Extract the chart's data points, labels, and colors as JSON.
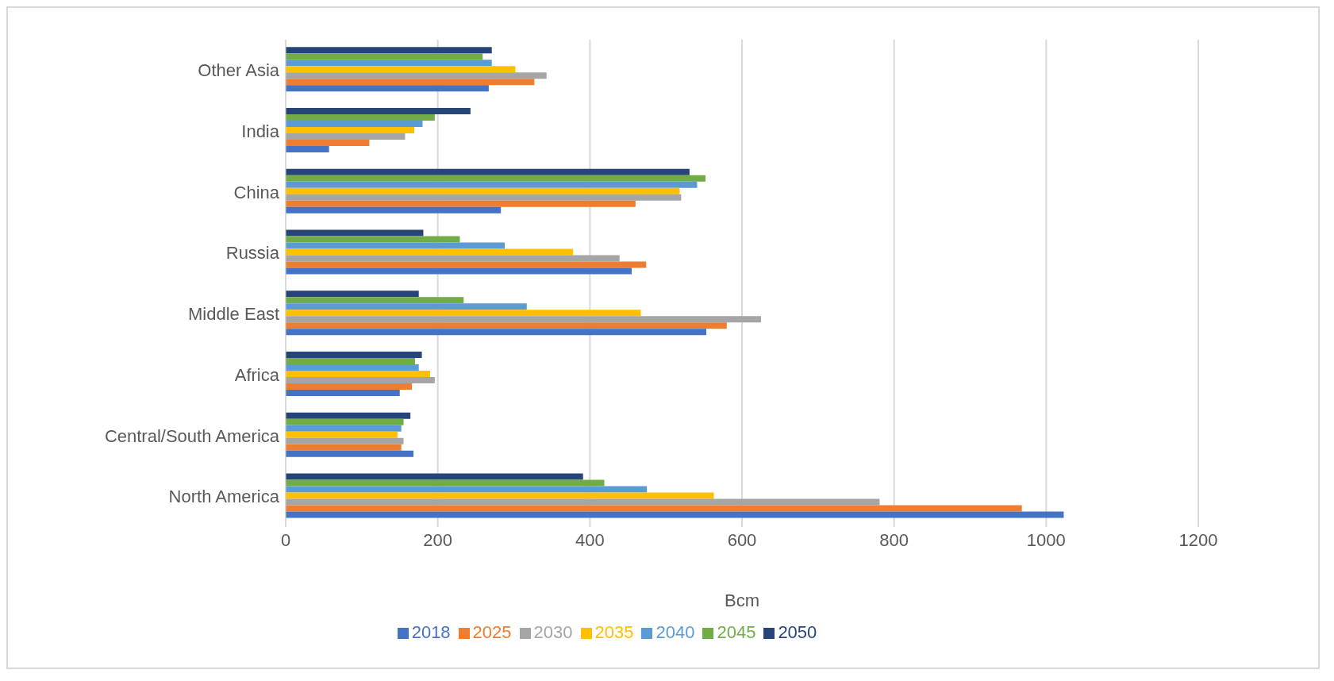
{
  "chart_data": {
    "type": "bar",
    "orientation": "horizontal",
    "xlabel": "Bcm",
    "categories": [
      "Other Asia",
      "India",
      "China",
      "Russia",
      "Middle East",
      "Africa",
      "Central/South America",
      "North America"
    ],
    "series": [
      {
        "name": "2050",
        "color": "#264478",
        "values": [
          271,
          243,
          531,
          181,
          175,
          179,
          164,
          391
        ]
      },
      {
        "name": "2045",
        "color": "#70ad47",
        "values": [
          259,
          196,
          552,
          229,
          234,
          170,
          155,
          419
        ]
      },
      {
        "name": "2040",
        "color": "#5b9bd5",
        "values": [
          271,
          180,
          541,
          288,
          317,
          175,
          152,
          475
        ]
      },
      {
        "name": "2035",
        "color": "#ffc000",
        "values": [
          302,
          169,
          518,
          378,
          467,
          190,
          147,
          563
        ]
      },
      {
        "name": "2030",
        "color": "#a5a5a5",
        "values": [
          343,
          157,
          520,
          439,
          625,
          196,
          155,
          781
        ]
      },
      {
        "name": "2025",
        "color": "#ed7d31",
        "values": [
          327,
          110,
          460,
          474,
          580,
          166,
          152,
          968
        ]
      },
      {
        "name": "2018",
        "color": "#4472c4",
        "values": [
          267,
          57,
          283,
          455,
          553,
          150,
          168,
          1023
        ]
      }
    ],
    "xlim": [
      0,
      1200
    ],
    "xticks": [
      0,
      200,
      400,
      600,
      800,
      1000,
      1200
    ],
    "grid": "x",
    "legend": "bottom"
  }
}
